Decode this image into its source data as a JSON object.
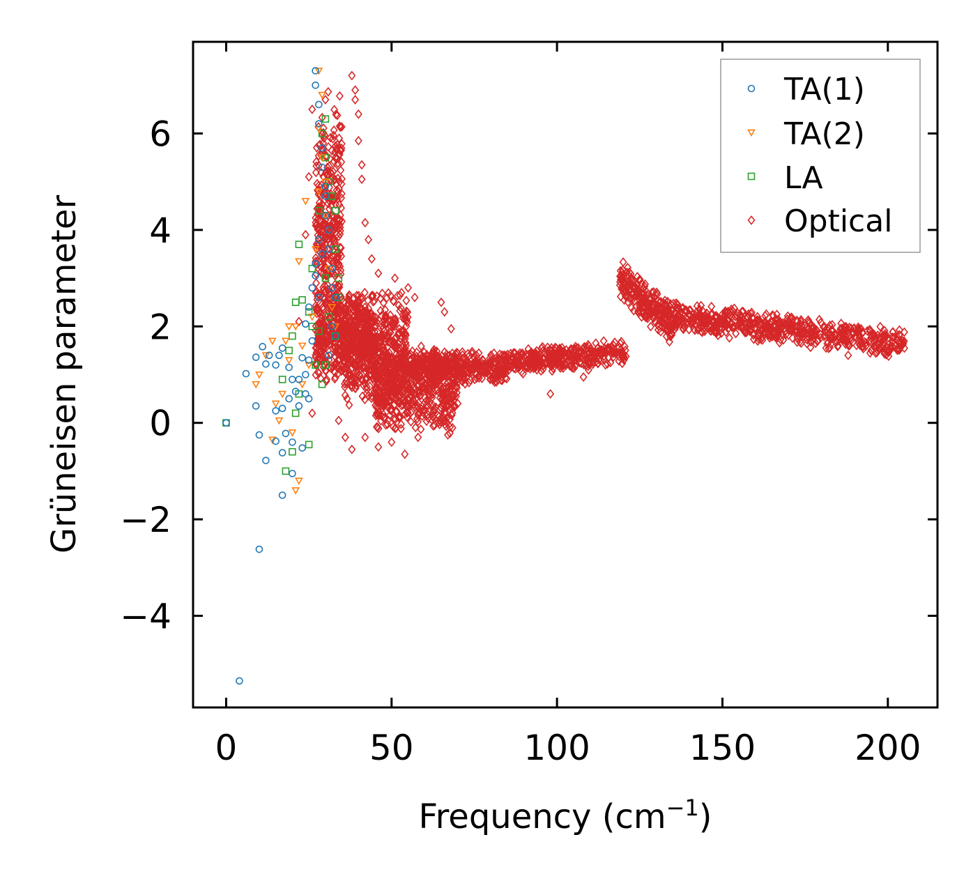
{
  "chart_data": {
    "type": "scatter",
    "title": "",
    "xlabel": "Frequency (cm",
    "xlabel_superscript": "−1",
    "xlabel_suffix": ")",
    "ylabel": "Grüneisen parameter",
    "xlim": [
      -10,
      215
    ],
    "ylim": [
      -5.9,
      7.9
    ],
    "xticks": [
      0,
      50,
      100,
      150,
      200
    ],
    "xtick_labels": [
      "0",
      "50",
      "100",
      "150",
      "200"
    ],
    "yticks": [
      -4,
      -2,
      0,
      2,
      4,
      6
    ],
    "ytick_labels": [
      "−4",
      "−2",
      "0",
      "2",
      "4",
      "6"
    ],
    "grid": false,
    "legend_position": "top-right",
    "series": [
      {
        "name": "TA(1)",
        "marker": "circle",
        "color": "#1f77b4",
        "points": [
          [
            0,
            0
          ],
          [
            4,
            -5.35
          ],
          [
            10,
            -2.62
          ],
          [
            17,
            -1.5
          ],
          [
            20,
            -1.05
          ],
          [
            12,
            -0.78
          ],
          [
            17,
            -0.62
          ],
          [
            23,
            -0.52
          ],
          [
            10,
            -0.25
          ],
          [
            15,
            -0.38
          ],
          [
            18,
            -0.22
          ],
          [
            20,
            -0.4
          ],
          [
            9,
            0.35
          ],
          [
            15,
            0.25
          ],
          [
            17,
            0.3
          ],
          [
            19,
            0.5
          ],
          [
            22,
            0.35
          ],
          [
            21,
            0.65
          ],
          [
            24,
            0.6
          ],
          [
            25,
            0.5
          ],
          [
            6,
            1.02
          ],
          [
            9,
            1.36
          ],
          [
            11,
            1.58
          ],
          [
            12,
            1.22
          ],
          [
            13,
            1.4
          ],
          [
            15,
            1.2
          ],
          [
            16,
            1.4
          ],
          [
            17,
            1.55
          ],
          [
            19,
            1.15
          ],
          [
            20,
            0.9
          ],
          [
            22,
            0.9
          ],
          [
            23,
            1.35
          ],
          [
            24,
            1.0
          ],
          [
            25,
            1.3
          ],
          [
            26,
            1.7
          ],
          [
            24,
            2.05
          ],
          [
            25,
            2.4
          ],
          [
            26,
            2.8
          ],
          [
            27,
            3.05
          ],
          [
            27,
            3.3
          ],
          [
            28,
            2.6
          ],
          [
            29,
            3.5
          ],
          [
            28,
            3.8
          ],
          [
            30,
            4.3
          ],
          [
            30,
            4.9
          ],
          [
            29,
            5.3
          ],
          [
            29,
            5.7
          ],
          [
            28,
            6.2
          ],
          [
            28,
            6.6
          ],
          [
            27,
            7.0
          ],
          [
            27,
            7.3
          ],
          [
            30,
            4.7
          ],
          [
            31,
            4.0
          ],
          [
            31,
            3.6
          ],
          [
            32,
            3.2
          ],
          [
            32,
            2.8
          ],
          [
            33,
            2.6
          ],
          [
            32,
            2.0
          ],
          [
            33,
            1.8
          ],
          [
            31,
            1.4
          ]
        ]
      },
      {
        "name": "TA(2)",
        "marker": "triangle-down",
        "color": "#ff7f0e",
        "points": [
          [
            9,
            0.8
          ],
          [
            10,
            1.0
          ],
          [
            14,
            -0.35
          ],
          [
            15,
            0.4
          ],
          [
            16,
            0.05
          ],
          [
            18,
            1.7
          ],
          [
            19,
            1.3
          ],
          [
            20,
            -0.2
          ],
          [
            21,
            -1.4
          ],
          [
            22,
            -1.2
          ],
          [
            21,
            2.0
          ],
          [
            22,
            3.35
          ],
          [
            24,
            4.6
          ],
          [
            23,
            1.6
          ],
          [
            25,
            1.2
          ],
          [
            26,
            2.2
          ],
          [
            27,
            3.6
          ],
          [
            28,
            4.8
          ],
          [
            28,
            6.1
          ],
          [
            28,
            7.3
          ],
          [
            29,
            6.8
          ],
          [
            29,
            5.5
          ],
          [
            30,
            5.0
          ],
          [
            30,
            4.3
          ],
          [
            31,
            3.2
          ],
          [
            32,
            2.4
          ],
          [
            33,
            2.0
          ],
          [
            14,
            1.7
          ],
          [
            17,
            0.6
          ],
          [
            19,
            2.0
          ],
          [
            12,
            1.4
          ],
          [
            23,
            0.8
          ]
        ]
      },
      {
        "name": "LA",
        "marker": "square",
        "color": "#2ca02c",
        "points": [
          [
            0,
            0
          ],
          [
            18,
            -1.0
          ],
          [
            20,
            -0.6
          ],
          [
            25,
            -0.45
          ],
          [
            21,
            0.2
          ],
          [
            22,
            0.6
          ],
          [
            17,
            0.9
          ],
          [
            19,
            1.5
          ],
          [
            20,
            1.8
          ],
          [
            21,
            2.5
          ],
          [
            23,
            2.55
          ],
          [
            22,
            3.7
          ],
          [
            25,
            2.3
          ],
          [
            26,
            2.0
          ],
          [
            26,
            3.2
          ],
          [
            27,
            1.2
          ],
          [
            28,
            1.9
          ],
          [
            28,
            4.4
          ],
          [
            29,
            6.0
          ],
          [
            30,
            6.3
          ],
          [
            30,
            5.5
          ],
          [
            31,
            5.0
          ],
          [
            32,
            4.7
          ],
          [
            33,
            4.4
          ],
          [
            33,
            3.6
          ],
          [
            34,
            3.0
          ],
          [
            34,
            2.6
          ],
          [
            33,
            1.8
          ],
          [
            30,
            1.2
          ],
          [
            29,
            0.8
          ],
          [
            31,
            2.2
          ],
          [
            30,
            3.0
          ]
        ]
      }
    ],
    "optical": {
      "name": "Optical",
      "marker": "diamond",
      "color": "#d62728",
      "dense_regions": [
        {
          "x": [
            27,
            35
          ],
          "y_center": 4.0,
          "y_halfwidth": 3.0,
          "count": 350
        },
        {
          "x": [
            27,
            45
          ],
          "y_center": 1.8,
          "y_halfwidth": 1.0,
          "count": 450
        },
        {
          "x": [
            35,
            55
          ],
          "y_center": 1.5,
          "y_halfwidth": 1.3,
          "count": 500
        },
        {
          "x": [
            45,
            70
          ],
          "y_center": 0.7,
          "y_halfwidth": 1.0,
          "count": 500
        },
        {
          "x": [
            55,
            85
          ],
          "y_center": 1.15,
          "y_halfwidth": 0.35,
          "count": 400
        },
        {
          "x": [
            85,
            121
          ],
          "y_center": 1.25,
          "y_halfwidth": 0.3,
          "count": 350
        },
        {
          "x": [
            119,
            135
          ],
          "y_center": 2.5,
          "y_halfwidth": 0.45,
          "count": 250
        },
        {
          "x": [
            135,
            205
          ],
          "y_center": 2.0,
          "y_halfwidth": 0.35,
          "count": 600
        }
      ],
      "scatter_points": [
        [
          38,
          7.2
        ],
        [
          39,
          6.9
        ],
        [
          39,
          6.7
        ],
        [
          40,
          6.4
        ],
        [
          40,
          5.85
        ],
        [
          41,
          5.35
        ],
        [
          41,
          5.05
        ],
        [
          42,
          4.15
        ],
        [
          43,
          3.8
        ],
        [
          44,
          3.4
        ],
        [
          46,
          3.1
        ],
        [
          51,
          3.0
        ],
        [
          53,
          2.7
        ],
        [
          55,
          2.8
        ],
        [
          57,
          2.6
        ],
        [
          65,
          2.5
        ],
        [
          66,
          2.3
        ],
        [
          68,
          1.95
        ],
        [
          34,
          0.05
        ],
        [
          36,
          -0.3
        ],
        [
          38,
          -0.55
        ],
        [
          42,
          -0.3
        ],
        [
          46,
          -0.5
        ],
        [
          50,
          -0.4
        ],
        [
          54,
          -0.65
        ],
        [
          58,
          -0.3
        ],
        [
          63,
          -0.05
        ],
        [
          67,
          -0.25
        ],
        [
          70,
          0.4
        ],
        [
          98,
          0.6
        ],
        [
          108,
          0.95
        ],
        [
          188,
          1.4
        ],
        [
          195,
          1.5
        ],
        [
          205,
          1.55
        ],
        [
          30,
          6.7
        ],
        [
          26,
          6.5
        ],
        [
          25,
          5.1
        ],
        [
          24,
          3.9
        ],
        [
          22,
          2.1
        ],
        [
          26,
          0.2
        ]
      ]
    }
  }
}
